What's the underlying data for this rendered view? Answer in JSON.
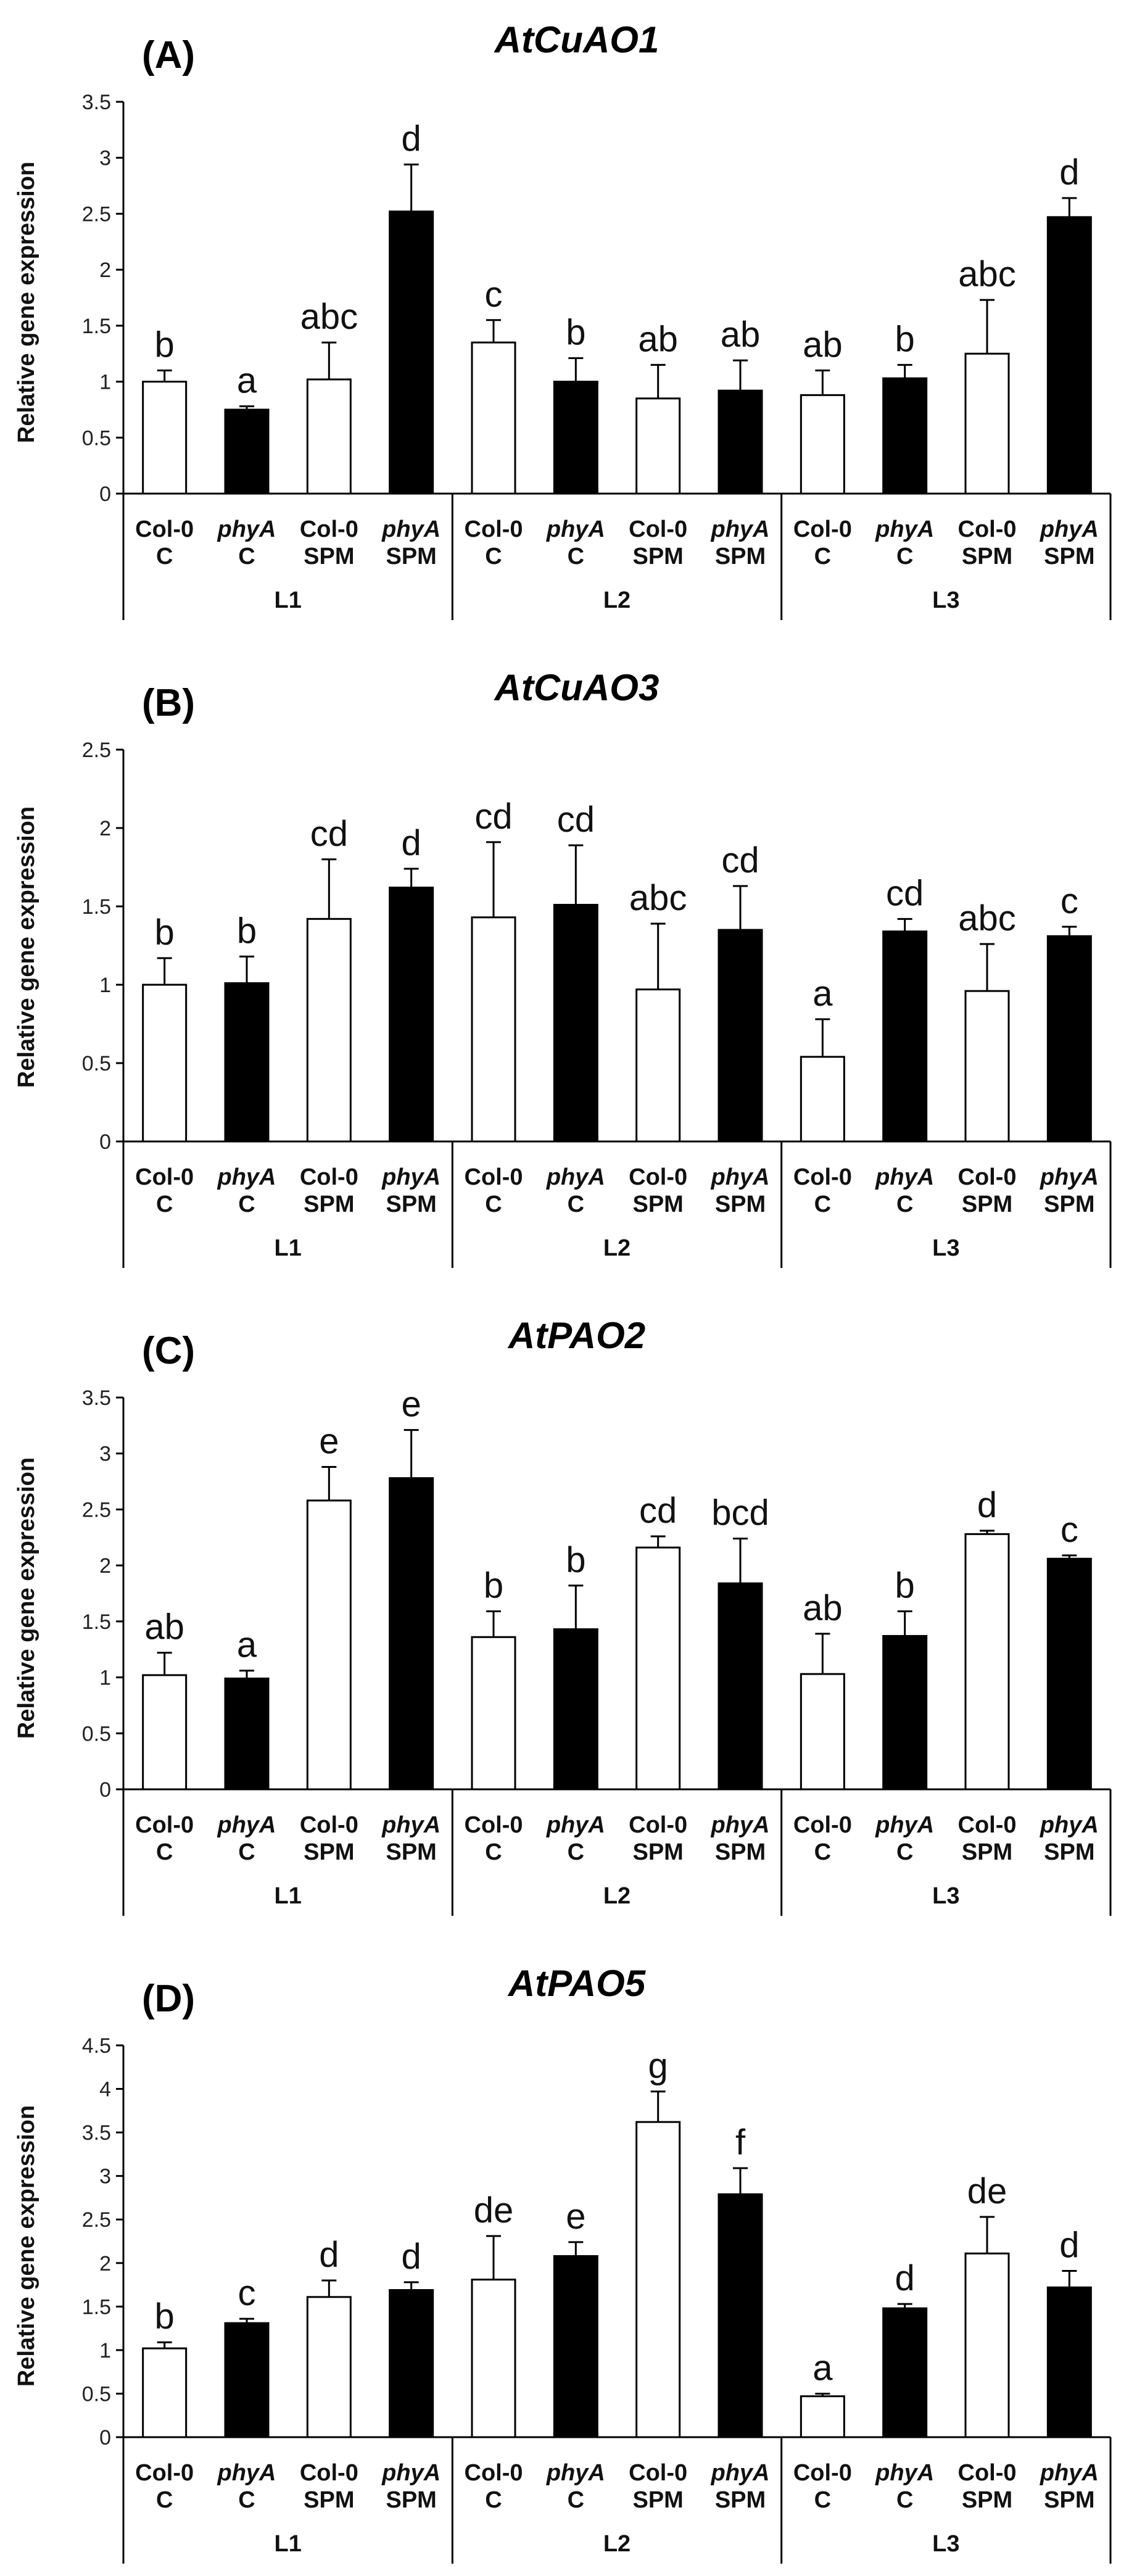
{
  "chart_data": [
    {
      "type": "bar",
      "panel": "(A)",
      "title": "AtCuAO1",
      "ylabel": "Relative gene expression",
      "ylim": [
        0,
        3.5
      ],
      "yticks": [
        "0",
        "0.5",
        "1",
        "1.5",
        "2",
        "2.5",
        "3",
        "3.5"
      ],
      "groups": [
        "L1",
        "L2",
        "L3"
      ],
      "categories": [
        [
          "Col-0",
          "C"
        ],
        [
          "phyA",
          "C"
        ],
        [
          "Col-0",
          "SPM"
        ],
        [
          "phyA",
          "SPM"
        ],
        [
          "Col-0",
          "C"
        ],
        [
          "phyA",
          "C"
        ],
        [
          "Col-0",
          "SPM"
        ],
        [
          "phyA",
          "SPM"
        ],
        [
          "Col-0",
          "C"
        ],
        [
          "phyA",
          "C"
        ],
        [
          "Col-0",
          "SPM"
        ],
        [
          "phyA",
          "SPM"
        ]
      ],
      "values": [
        1.0,
        0.75,
        1.02,
        2.52,
        1.35,
        1.0,
        0.85,
        0.92,
        0.88,
        1.03,
        1.25,
        2.47
      ],
      "errors": [
        0.1,
        0.03,
        0.33,
        0.42,
        0.2,
        0.21,
        0.3,
        0.27,
        0.22,
        0.12,
        0.48,
        0.17
      ],
      "letters": [
        "b",
        "a",
        "abc",
        "d",
        "c",
        "b",
        "ab",
        "ab",
        "ab",
        "b",
        "abc",
        "d"
      ],
      "fills": [
        "white",
        "black",
        "white",
        "black",
        "white",
        "black",
        "white",
        "black",
        "white",
        "black",
        "white",
        "black"
      ]
    },
    {
      "type": "bar",
      "panel": "(B)",
      "title": "AtCuAO3",
      "ylabel": "Relative gene expression",
      "ylim": [
        0,
        2.5
      ],
      "yticks": [
        "0",
        "0.5",
        "1",
        "1.5",
        "2",
        "2.5"
      ],
      "groups": [
        "L1",
        "L2",
        "L3"
      ],
      "categories": [
        [
          "Col-0",
          "C"
        ],
        [
          "phyA",
          "C"
        ],
        [
          "Col-0",
          "SPM"
        ],
        [
          "phyA",
          "SPM"
        ],
        [
          "Col-0",
          "C"
        ],
        [
          "phyA",
          "C"
        ],
        [
          "Col-0",
          "SPM"
        ],
        [
          "phyA",
          "SPM"
        ],
        [
          "Col-0",
          "C"
        ],
        [
          "phyA",
          "C"
        ],
        [
          "Col-0",
          "SPM"
        ],
        [
          "phyA",
          "SPM"
        ]
      ],
      "values": [
        1.0,
        1.01,
        1.42,
        1.62,
        1.43,
        1.51,
        0.97,
        1.35,
        0.54,
        1.34,
        0.96,
        1.31
      ],
      "errors": [
        0.17,
        0.17,
        0.38,
        0.12,
        0.48,
        0.38,
        0.42,
        0.28,
        0.24,
        0.08,
        0.3,
        0.06
      ],
      "letters": [
        "b",
        "b",
        "cd",
        "d",
        "cd",
        "cd",
        "abc",
        "cd",
        "a",
        "cd",
        "abc",
        "c"
      ],
      "fills": [
        "white",
        "black",
        "white",
        "black",
        "white",
        "black",
        "white",
        "black",
        "white",
        "black",
        "white",
        "black"
      ]
    },
    {
      "type": "bar",
      "panel": "(C)",
      "title": "AtPAO2",
      "ylabel": "Relative gene expression",
      "ylim": [
        0,
        3.5
      ],
      "yticks": [
        "0",
        "0.5",
        "1",
        "1.5",
        "2",
        "2.5",
        "3",
        "3.5"
      ],
      "groups": [
        "L1",
        "L2",
        "L3"
      ],
      "categories": [
        [
          "Col-0",
          "C"
        ],
        [
          "phyA",
          "C"
        ],
        [
          "Col-0",
          "SPM"
        ],
        [
          "phyA",
          "SPM"
        ],
        [
          "Col-0",
          "C"
        ],
        [
          "phyA",
          "C"
        ],
        [
          "Col-0",
          "SPM"
        ],
        [
          "phyA",
          "SPM"
        ],
        [
          "Col-0",
          "C"
        ],
        [
          "phyA",
          "C"
        ],
        [
          "Col-0",
          "SPM"
        ],
        [
          "phyA",
          "SPM"
        ]
      ],
      "values": [
        1.02,
        0.99,
        2.58,
        2.78,
        1.36,
        1.43,
        2.16,
        1.84,
        1.03,
        1.37,
        2.28,
        2.06
      ],
      "errors": [
        0.2,
        0.07,
        0.3,
        0.43,
        0.23,
        0.39,
        0.1,
        0.4,
        0.36,
        0.22,
        0.03,
        0.03
      ],
      "letters": [
        "ab",
        "a",
        "e",
        "e",
        "b",
        "b",
        "cd",
        "bcd",
        "ab",
        "b",
        "d",
        "c"
      ],
      "fills": [
        "white",
        "black",
        "white",
        "black",
        "white",
        "black",
        "white",
        "black",
        "white",
        "black",
        "white",
        "black"
      ]
    },
    {
      "type": "bar",
      "panel": "(D)",
      "title": "AtPAO5",
      "ylabel": "Relative gene expression",
      "ylim": [
        0,
        4.5
      ],
      "yticks": [
        "0",
        "0.5",
        "1",
        "1.5",
        "2",
        "2.5",
        "3",
        "3.5",
        "4",
        "4.5"
      ],
      "groups": [
        "L1",
        "L2",
        "L3"
      ],
      "categories": [
        [
          "Col-0",
          "C"
        ],
        [
          "phyA",
          "C"
        ],
        [
          "Col-0",
          "SPM"
        ],
        [
          "phyA",
          "SPM"
        ],
        [
          "Col-0",
          "C"
        ],
        [
          "phyA",
          "C"
        ],
        [
          "Col-0",
          "SPM"
        ],
        [
          "phyA",
          "SPM"
        ],
        [
          "Col-0",
          "C"
        ],
        [
          "phyA",
          "C"
        ],
        [
          "Col-0",
          "SPM"
        ],
        [
          "phyA",
          "SPM"
        ]
      ],
      "values": [
        1.02,
        1.31,
        1.61,
        1.69,
        1.81,
        2.08,
        3.62,
        2.79,
        0.47,
        1.48,
        2.11,
        1.72
      ],
      "errors": [
        0.07,
        0.05,
        0.19,
        0.09,
        0.5,
        0.16,
        0.35,
        0.3,
        0.03,
        0.05,
        0.42,
        0.19
      ],
      "letters": [
        "b",
        "c",
        "d",
        "d",
        "de",
        "e",
        "g",
        "f",
        "a",
        "d",
        "de",
        "d"
      ],
      "fills": [
        "white",
        "black",
        "white",
        "black",
        "white",
        "black",
        "white",
        "black",
        "white",
        "black",
        "white",
        "black"
      ]
    }
  ]
}
